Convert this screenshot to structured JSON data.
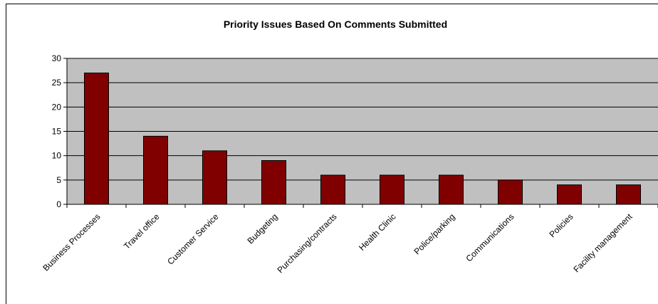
{
  "chart_data": {
    "type": "bar",
    "title": "Priority Issues Based On Comments Submitted",
    "xlabel": "",
    "ylabel": "",
    "categories": [
      "Business Processes",
      "Travel office",
      "Customer Service",
      "Budgeting",
      "Purchasing/contracts",
      "Health Clinic",
      "Police/parking",
      "Communications",
      "Policies",
      "Facility management"
    ],
    "values": [
      27,
      14,
      11,
      9,
      6,
      6,
      6,
      5,
      4,
      4
    ],
    "ylim": [
      0,
      30
    ],
    "yticks": [
      "0",
      "5",
      "10",
      "15",
      "20",
      "25",
      "30"
    ],
    "grid": true,
    "legend": "none",
    "colors": {
      "bar": "#800000",
      "plot_background": "#c0c0c0",
      "gridline": "#000000"
    }
  }
}
